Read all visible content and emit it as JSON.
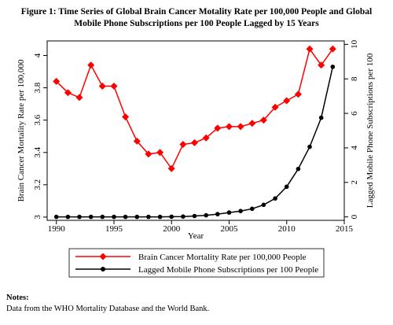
{
  "figure": {
    "title_line1": "Figure 1: Time Series of Global Brain Cancer Motality Rate per 100,000 People and Global",
    "title_line2": "Mobile Phone Subscriptions per 100 People Lagged by 15 Years"
  },
  "chart_data": {
    "type": "line",
    "xlabel": "Year",
    "ylabel_left": "Brain Cancer Mortality Rate per 100,000",
    "ylabel_right": "Lagged Mobile Phone Subscriptions per 100",
    "xlim": [
      1989.2,
      2015
    ],
    "ylim_left": [
      2.98,
      4.09
    ],
    "ylim_right": [
      -0.2,
      10.2
    ],
    "xticks": [
      1990,
      1995,
      2000,
      2005,
      2010,
      2015
    ],
    "yticks_left": [
      3,
      3.2,
      3.4,
      3.6,
      3.8,
      4
    ],
    "yticks_left_labels": [
      "3",
      "3.2",
      "3.4",
      "3.6",
      "3.8",
      "4"
    ],
    "yticks_right": [
      0,
      2,
      4,
      6,
      8,
      10
    ],
    "yticks_right_labels": [
      "0",
      "2",
      "4",
      "6",
      "8",
      "10"
    ],
    "grid": false,
    "legend_position": "bottom",
    "series": [
      {
        "name": "Brain Cancer Mortality Rate per 100,000 People",
        "axis": "left",
        "color": "#ff0000",
        "marker": "diamond",
        "x": [
          1990,
          1991,
          1992,
          1993,
          1994,
          1995,
          1996,
          1997,
          1998,
          1999,
          2000,
          2001,
          2002,
          2003,
          2004,
          2005,
          2006,
          2007,
          2008,
          2009,
          2010,
          2011,
          2012,
          2013,
          2014
        ],
        "y": [
          3.84,
          3.77,
          3.74,
          3.94,
          3.81,
          3.81,
          3.62,
          3.47,
          3.39,
          3.4,
          3.3,
          3.45,
          3.46,
          3.49,
          3.55,
          3.56,
          3.56,
          3.58,
          3.6,
          3.68,
          3.72,
          3.76,
          4.04,
          3.94,
          4.04
        ]
      },
      {
        "name": "Lagged Mobile Phone Subscriptions per 100 People",
        "axis": "right",
        "color": "#000000",
        "marker": "circle",
        "x": [
          1990,
          1991,
          1992,
          1993,
          1994,
          1995,
          1996,
          1997,
          1998,
          1999,
          2000,
          2001,
          2002,
          2003,
          2004,
          2005,
          2006,
          2007,
          2008,
          2009,
          2010,
          2011,
          2012,
          2013,
          2014
        ],
        "y": [
          0,
          0,
          0,
          0,
          0,
          0,
          0,
          0,
          0,
          0,
          0.01,
          0.02,
          0.05,
          0.09,
          0.16,
          0.25,
          0.34,
          0.47,
          0.7,
          1.07,
          1.75,
          2.78,
          4.06,
          5.75,
          8.7
        ]
      }
    ]
  },
  "notes": {
    "heading": "Notes:",
    "text": "Data from the WHO Mortality Database and the World Bank."
  }
}
